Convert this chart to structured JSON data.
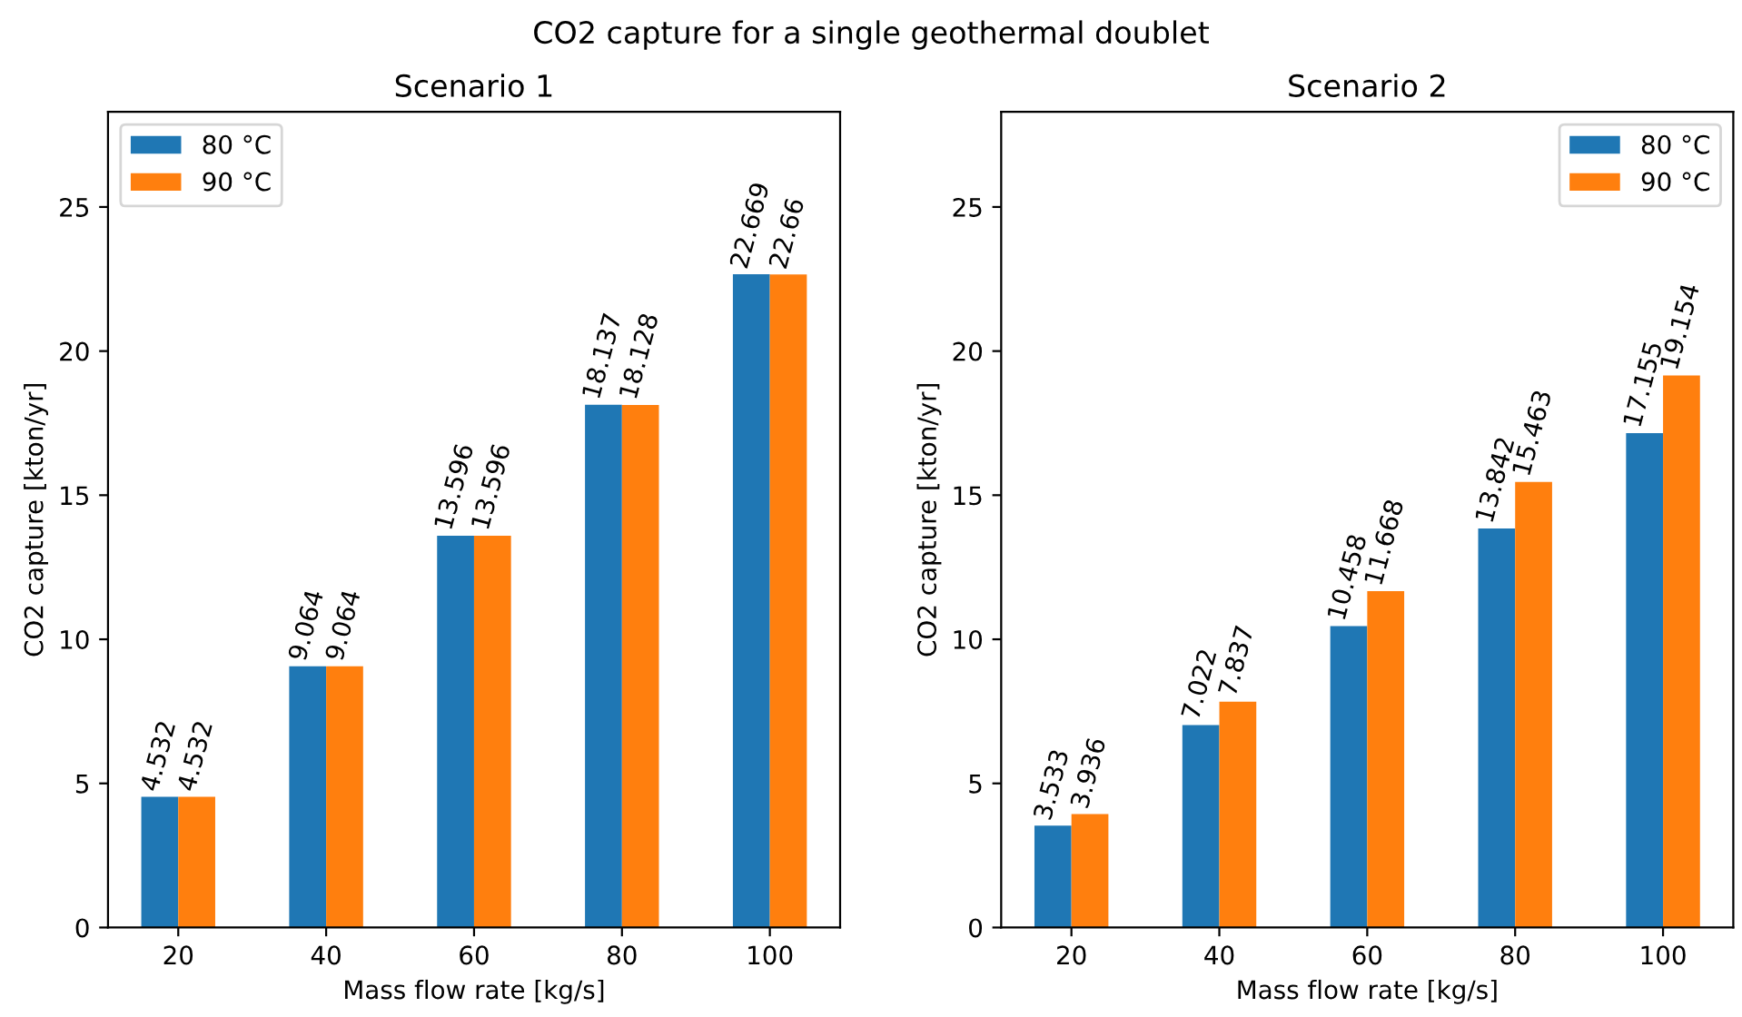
{
  "chart_data": [
    {
      "type": "bar",
      "title": "Scenario 1",
      "xlabel": "Mass flow rate [kg/s]",
      "ylabel": "CO2 capture [kton/yr]",
      "categories": [
        "20",
        "40",
        "60",
        "80",
        "100"
      ],
      "ylim": [
        0,
        28.3
      ],
      "yticks": [
        0,
        5,
        10,
        15,
        20,
        25
      ],
      "legend": "top left",
      "data_labels": true,
      "series": [
        {
          "name": "80 °C",
          "color": "#1f77b4",
          "values": [
            4.532,
            9.064,
            13.596,
            18.137,
            22.669
          ]
        },
        {
          "name": "90 °C",
          "color": "#ff7f0e",
          "values": [
            4.532,
            9.064,
            13.596,
            18.128,
            22.66
          ]
        }
      ]
    },
    {
      "type": "bar",
      "title": "Scenario 2",
      "xlabel": "Mass flow rate [kg/s]",
      "ylabel": "CO2 capture [kton/yr]",
      "categories": [
        "20",
        "40",
        "60",
        "80",
        "100"
      ],
      "ylim": [
        0,
        28.3
      ],
      "yticks": [
        0,
        5,
        10,
        15,
        20,
        25
      ],
      "legend": "top right",
      "data_labels": true,
      "annotations": [
        "CO2 capture for a single geothermal doublet"
      ],
      "series": [
        {
          "name": "80 °C",
          "color": "#1f77b4",
          "values": [
            3.533,
            7.022,
            10.458,
            13.842,
            17.155
          ]
        },
        {
          "name": "90 °C",
          "color": "#ff7f0e",
          "values": [
            3.936,
            7.837,
            11.668,
            15.463,
            19.154
          ]
        }
      ]
    }
  ]
}
